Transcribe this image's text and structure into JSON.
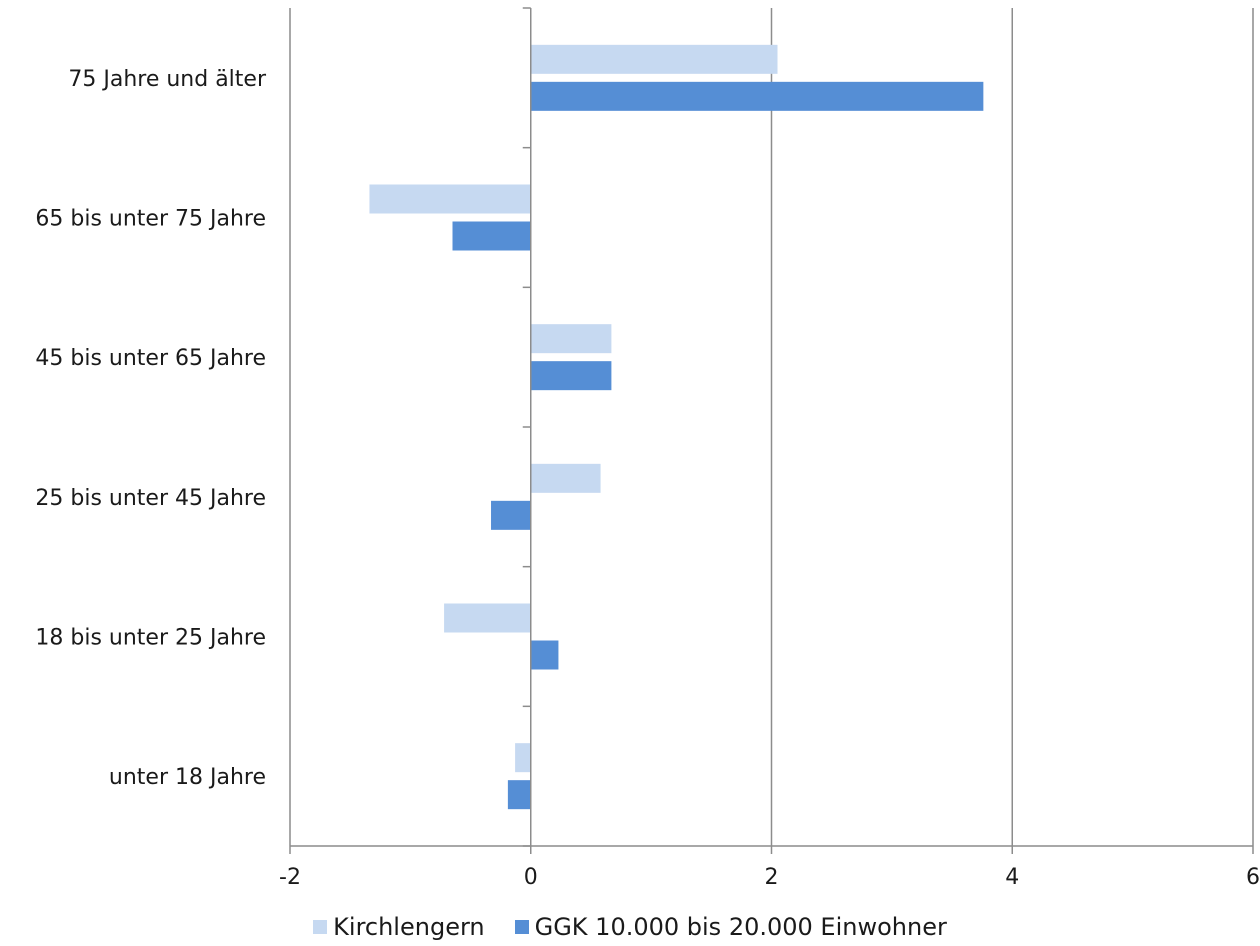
{
  "chart_data": {
    "type": "bar",
    "orientation": "horizontal",
    "categories": [
      "75 Jahre und älter",
      "65 bis unter 75 Jahre",
      "45 bis unter 65 Jahre",
      "25 bis unter 45 Jahre",
      "18 bis unter 25 Jahre",
      "unter 18 Jahre"
    ],
    "series": [
      {
        "name": "Kirchlengern",
        "color": "#c6d9f1",
        "values": [
          2.05,
          -1.34,
          0.67,
          0.58,
          -0.72,
          -0.13
        ]
      },
      {
        "name": "GGK 10.000 bis 20.000 Einwohner",
        "color": "#558ed5",
        "values": [
          3.76,
          -0.65,
          0.67,
          -0.33,
          0.23,
          -0.19
        ]
      }
    ],
    "xlim": [
      -2,
      6
    ],
    "xticks": [
      "-2",
      "0",
      "2",
      "4",
      "6"
    ],
    "xtick_values": [
      -2,
      0,
      2,
      4,
      6
    ],
    "grid": "vertical",
    "legend_position": "bottom",
    "title": "",
    "xlabel": "",
    "ylabel": ""
  }
}
